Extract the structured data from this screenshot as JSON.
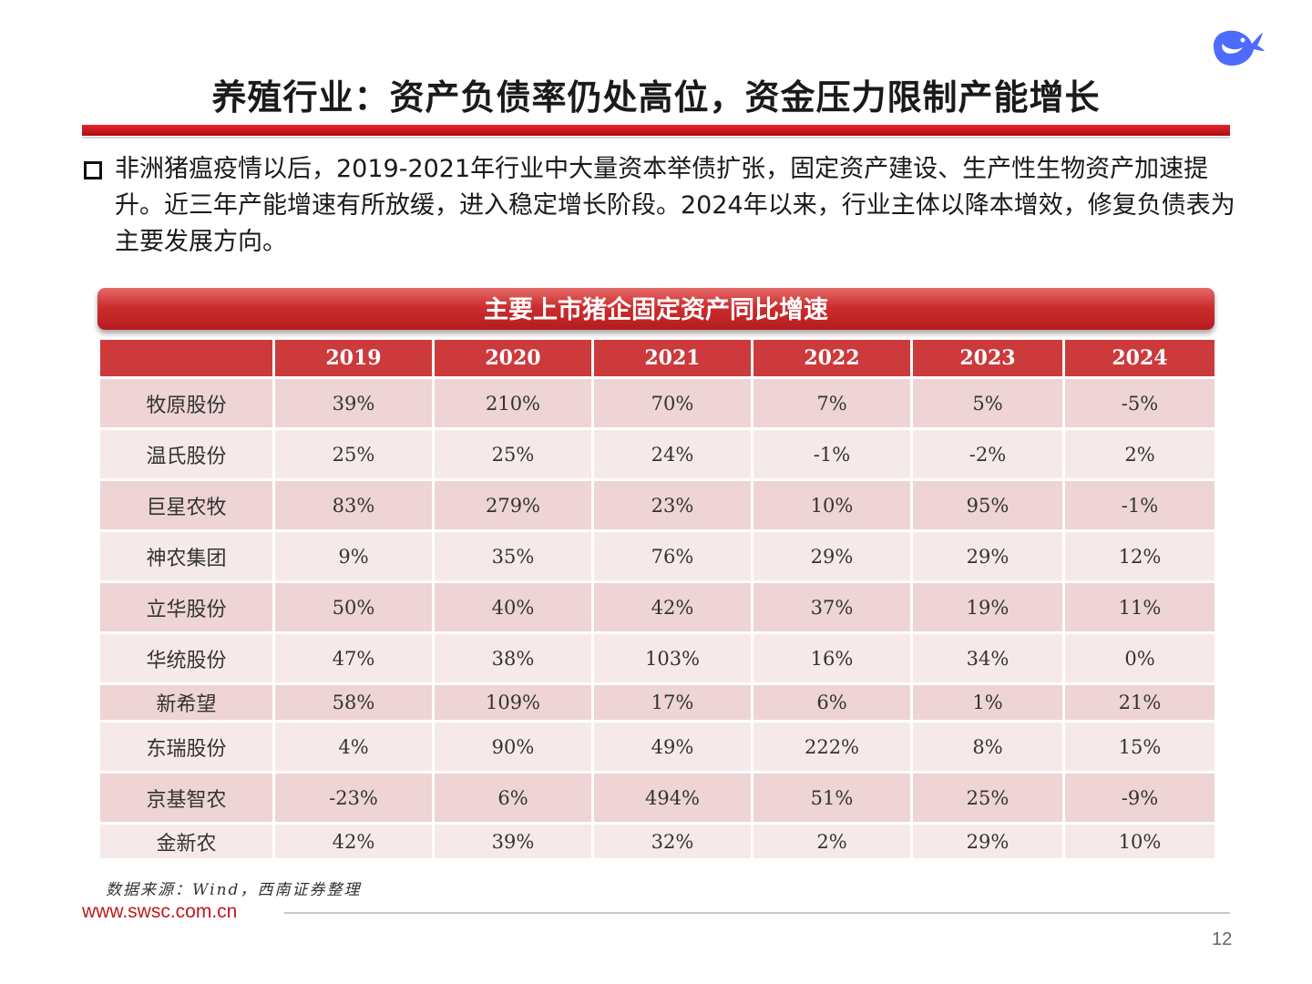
{
  "title": "养殖行业：资产负债率仍处高位，资金压力限制产能增长",
  "bullet": "非洲猪瘟疫情以后，2019-2021年行业中大量资本举债扩张，固定资产建设、生产性生物资产加速提升。近三年产能增速有所放缓，进入稳定增长阶段。2024年以来，行业主体以降本增效，修复负债表为主要发展方向。",
  "table": {
    "title": "主要上市猪企固定资产同比增速",
    "corner": "",
    "years": [
      "2019",
      "2020",
      "2021",
      "2022",
      "2023",
      "2024"
    ],
    "rows": [
      {
        "company": "牧原股份",
        "values": [
          "39%",
          "210%",
          "70%",
          "7%",
          "5%",
          "-5%"
        ]
      },
      {
        "company": "温氏股份",
        "values": [
          "25%",
          "25%",
          "24%",
          "-1%",
          "-2%",
          "2%"
        ]
      },
      {
        "company": "巨星农牧",
        "values": [
          "83%",
          "279%",
          "23%",
          "10%",
          "95%",
          "-1%"
        ]
      },
      {
        "company": "神农集团",
        "values": [
          "9%",
          "35%",
          "76%",
          "29%",
          "29%",
          "12%"
        ]
      },
      {
        "company": "立华股份",
        "values": [
          "50%",
          "40%",
          "42%",
          "37%",
          "19%",
          "11%"
        ]
      },
      {
        "company": "华统股份",
        "values": [
          "47%",
          "38%",
          "103%",
          "16%",
          "34%",
          "0%"
        ]
      },
      {
        "company": "新希望",
        "values": [
          "58%",
          "109%",
          "17%",
          "6%",
          "1%",
          "21%"
        ]
      },
      {
        "company": "东瑞股份",
        "values": [
          "4%",
          "90%",
          "49%",
          "222%",
          "8%",
          "15%"
        ]
      },
      {
        "company": "京基智农",
        "values": [
          "-23%",
          "6%",
          "494%",
          "51%",
          "25%",
          "-9%"
        ]
      },
      {
        "company": "金新农",
        "values": [
          "42%",
          "39%",
          "32%",
          "2%",
          "29%",
          "10%"
        ]
      }
    ]
  },
  "source": "数据来源：Wind，西南证券整理",
  "website": "www.swsc.com.cn",
  "page_number": "12",
  "logo_icon": "whale-logo-icon",
  "colors": {
    "accent_red": "#c8141c",
    "table_header": "#cc3a3c",
    "row_odd": "#eed4d4",
    "row_even": "#f6e9e9",
    "logo_blue": "#4d6bfe"
  }
}
